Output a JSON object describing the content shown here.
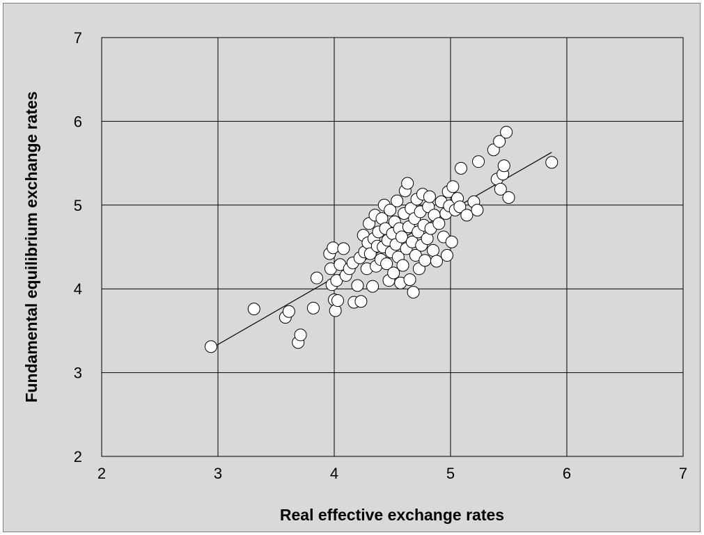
{
  "chart_data": {
    "type": "scatter",
    "title": "",
    "xlabel": "Real effective exchange rates",
    "ylabel": "Fundamental equilibrium exchange rates",
    "xlim": [
      2,
      7
    ],
    "ylim": [
      2,
      7
    ],
    "x_ticks": [
      "2",
      "3",
      "4",
      "5",
      "6",
      "7"
    ],
    "y_ticks": [
      "2",
      "3",
      "4",
      "5",
      "6",
      "7"
    ],
    "grid": true,
    "legend": "none",
    "marker_color": "#ffffff",
    "marker_edge_color": "#000000",
    "background_color": "#d9d9d9",
    "trendline": {
      "x": [
        2.93,
        5.87
      ],
      "y": [
        3.28,
        5.63
      ]
    },
    "points": [
      {
        "x": 2.94,
        "y": 3.31
      },
      {
        "x": 3.31,
        "y": 3.76
      },
      {
        "x": 3.58,
        "y": 3.66
      },
      {
        "x": 3.61,
        "y": 3.73
      },
      {
        "x": 3.69,
        "y": 3.36
      },
      {
        "x": 3.71,
        "y": 3.45
      },
      {
        "x": 3.82,
        "y": 3.77
      },
      {
        "x": 3.85,
        "y": 4.13
      },
      {
        "x": 3.96,
        "y": 4.42
      },
      {
        "x": 3.97,
        "y": 4.24
      },
      {
        "x": 3.98,
        "y": 4.05
      },
      {
        "x": 3.99,
        "y": 4.49
      },
      {
        "x": 4.0,
        "y": 3.87
      },
      {
        "x": 4.01,
        "y": 3.74
      },
      {
        "x": 4.02,
        "y": 4.1
      },
      {
        "x": 4.03,
        "y": 3.86
      },
      {
        "x": 4.05,
        "y": 4.29
      },
      {
        "x": 4.08,
        "y": 4.48
      },
      {
        "x": 4.1,
        "y": 4.16
      },
      {
        "x": 4.13,
        "y": 4.24
      },
      {
        "x": 4.16,
        "y": 4.31
      },
      {
        "x": 4.17,
        "y": 3.84
      },
      {
        "x": 4.2,
        "y": 4.04
      },
      {
        "x": 4.22,
        "y": 4.37
      },
      {
        "x": 4.23,
        "y": 3.85
      },
      {
        "x": 4.25,
        "y": 4.64
      },
      {
        "x": 4.26,
        "y": 4.44
      },
      {
        "x": 4.28,
        "y": 4.24
      },
      {
        "x": 4.29,
        "y": 4.55
      },
      {
        "x": 4.3,
        "y": 4.78
      },
      {
        "x": 4.31,
        "y": 4.42
      },
      {
        "x": 4.33,
        "y": 4.03
      },
      {
        "x": 4.34,
        "y": 4.6
      },
      {
        "x": 4.35,
        "y": 4.88
      },
      {
        "x": 4.36,
        "y": 4.27
      },
      {
        "x": 4.37,
        "y": 4.51
      },
      {
        "x": 4.38,
        "y": 4.68
      },
      {
        "x": 4.4,
        "y": 4.35
      },
      {
        "x": 4.41,
        "y": 4.84
      },
      {
        "x": 4.42,
        "y": 4.5
      },
      {
        "x": 4.43,
        "y": 5.0
      },
      {
        "x": 4.44,
        "y": 4.72
      },
      {
        "x": 4.45,
        "y": 4.3
      },
      {
        "x": 4.46,
        "y": 4.58
      },
      {
        "x": 4.47,
        "y": 4.1
      },
      {
        "x": 4.48,
        "y": 4.94
      },
      {
        "x": 4.49,
        "y": 4.44
      },
      {
        "x": 4.5,
        "y": 4.66
      },
      {
        "x": 4.51,
        "y": 4.19
      },
      {
        "x": 4.52,
        "y": 4.8
      },
      {
        "x": 4.53,
        "y": 4.53
      },
      {
        "x": 4.54,
        "y": 5.05
      },
      {
        "x": 4.55,
        "y": 4.38
      },
      {
        "x": 4.56,
        "y": 4.72
      },
      {
        "x": 4.57,
        "y": 4.07
      },
      {
        "x": 4.58,
        "y": 4.62
      },
      {
        "x": 4.59,
        "y": 4.28
      },
      {
        "x": 4.6,
        "y": 4.9
      },
      {
        "x": 4.61,
        "y": 5.17
      },
      {
        "x": 4.62,
        "y": 4.48
      },
      {
        "x": 4.63,
        "y": 5.26
      },
      {
        "x": 4.64,
        "y": 4.74
      },
      {
        "x": 4.65,
        "y": 4.11
      },
      {
        "x": 4.66,
        "y": 4.96
      },
      {
        "x": 4.67,
        "y": 4.56
      },
      {
        "x": 4.68,
        "y": 3.96
      },
      {
        "x": 4.69,
        "y": 4.84
      },
      {
        "x": 4.7,
        "y": 4.4
      },
      {
        "x": 4.71,
        "y": 5.07
      },
      {
        "x": 4.72,
        "y": 4.68
      },
      {
        "x": 4.73,
        "y": 4.24
      },
      {
        "x": 4.74,
        "y": 4.92
      },
      {
        "x": 4.75,
        "y": 4.52
      },
      {
        "x": 4.76,
        "y": 5.13
      },
      {
        "x": 4.77,
        "y": 4.76
      },
      {
        "x": 4.78,
        "y": 4.34
      },
      {
        "x": 4.8,
        "y": 4.6
      },
      {
        "x": 4.81,
        "y": 4.98
      },
      {
        "x": 4.82,
        "y": 5.1
      },
      {
        "x": 4.83,
        "y": 4.72
      },
      {
        "x": 4.85,
        "y": 4.46
      },
      {
        "x": 4.86,
        "y": 4.88
      },
      {
        "x": 4.88,
        "y": 4.33
      },
      {
        "x": 4.9,
        "y": 4.78
      },
      {
        "x": 4.92,
        "y": 5.04
      },
      {
        "x": 4.94,
        "y": 4.62
      },
      {
        "x": 4.96,
        "y": 4.9
      },
      {
        "x": 4.97,
        "y": 4.4
      },
      {
        "x": 4.98,
        "y": 5.16
      },
      {
        "x": 4.99,
        "y": 4.99
      },
      {
        "x": 5.01,
        "y": 4.56
      },
      {
        "x": 5.02,
        "y": 5.22
      },
      {
        "x": 5.04,
        "y": 4.94
      },
      {
        "x": 5.06,
        "y": 5.08
      },
      {
        "x": 5.08,
        "y": 4.98
      },
      {
        "x": 5.09,
        "y": 5.44
      },
      {
        "x": 5.14,
        "y": 4.88
      },
      {
        "x": 5.2,
        "y": 5.04
      },
      {
        "x": 5.23,
        "y": 4.94
      },
      {
        "x": 5.24,
        "y": 5.52
      },
      {
        "x": 5.37,
        "y": 5.66
      },
      {
        "x": 5.4,
        "y": 5.31
      },
      {
        "x": 5.42,
        "y": 5.76
      },
      {
        "x": 5.43,
        "y": 5.19
      },
      {
        "x": 5.45,
        "y": 5.37
      },
      {
        "x": 5.46,
        "y": 5.47
      },
      {
        "x": 5.48,
        "y": 5.87
      },
      {
        "x": 5.5,
        "y": 5.09
      },
      {
        "x": 5.87,
        "y": 5.51
      }
    ]
  }
}
